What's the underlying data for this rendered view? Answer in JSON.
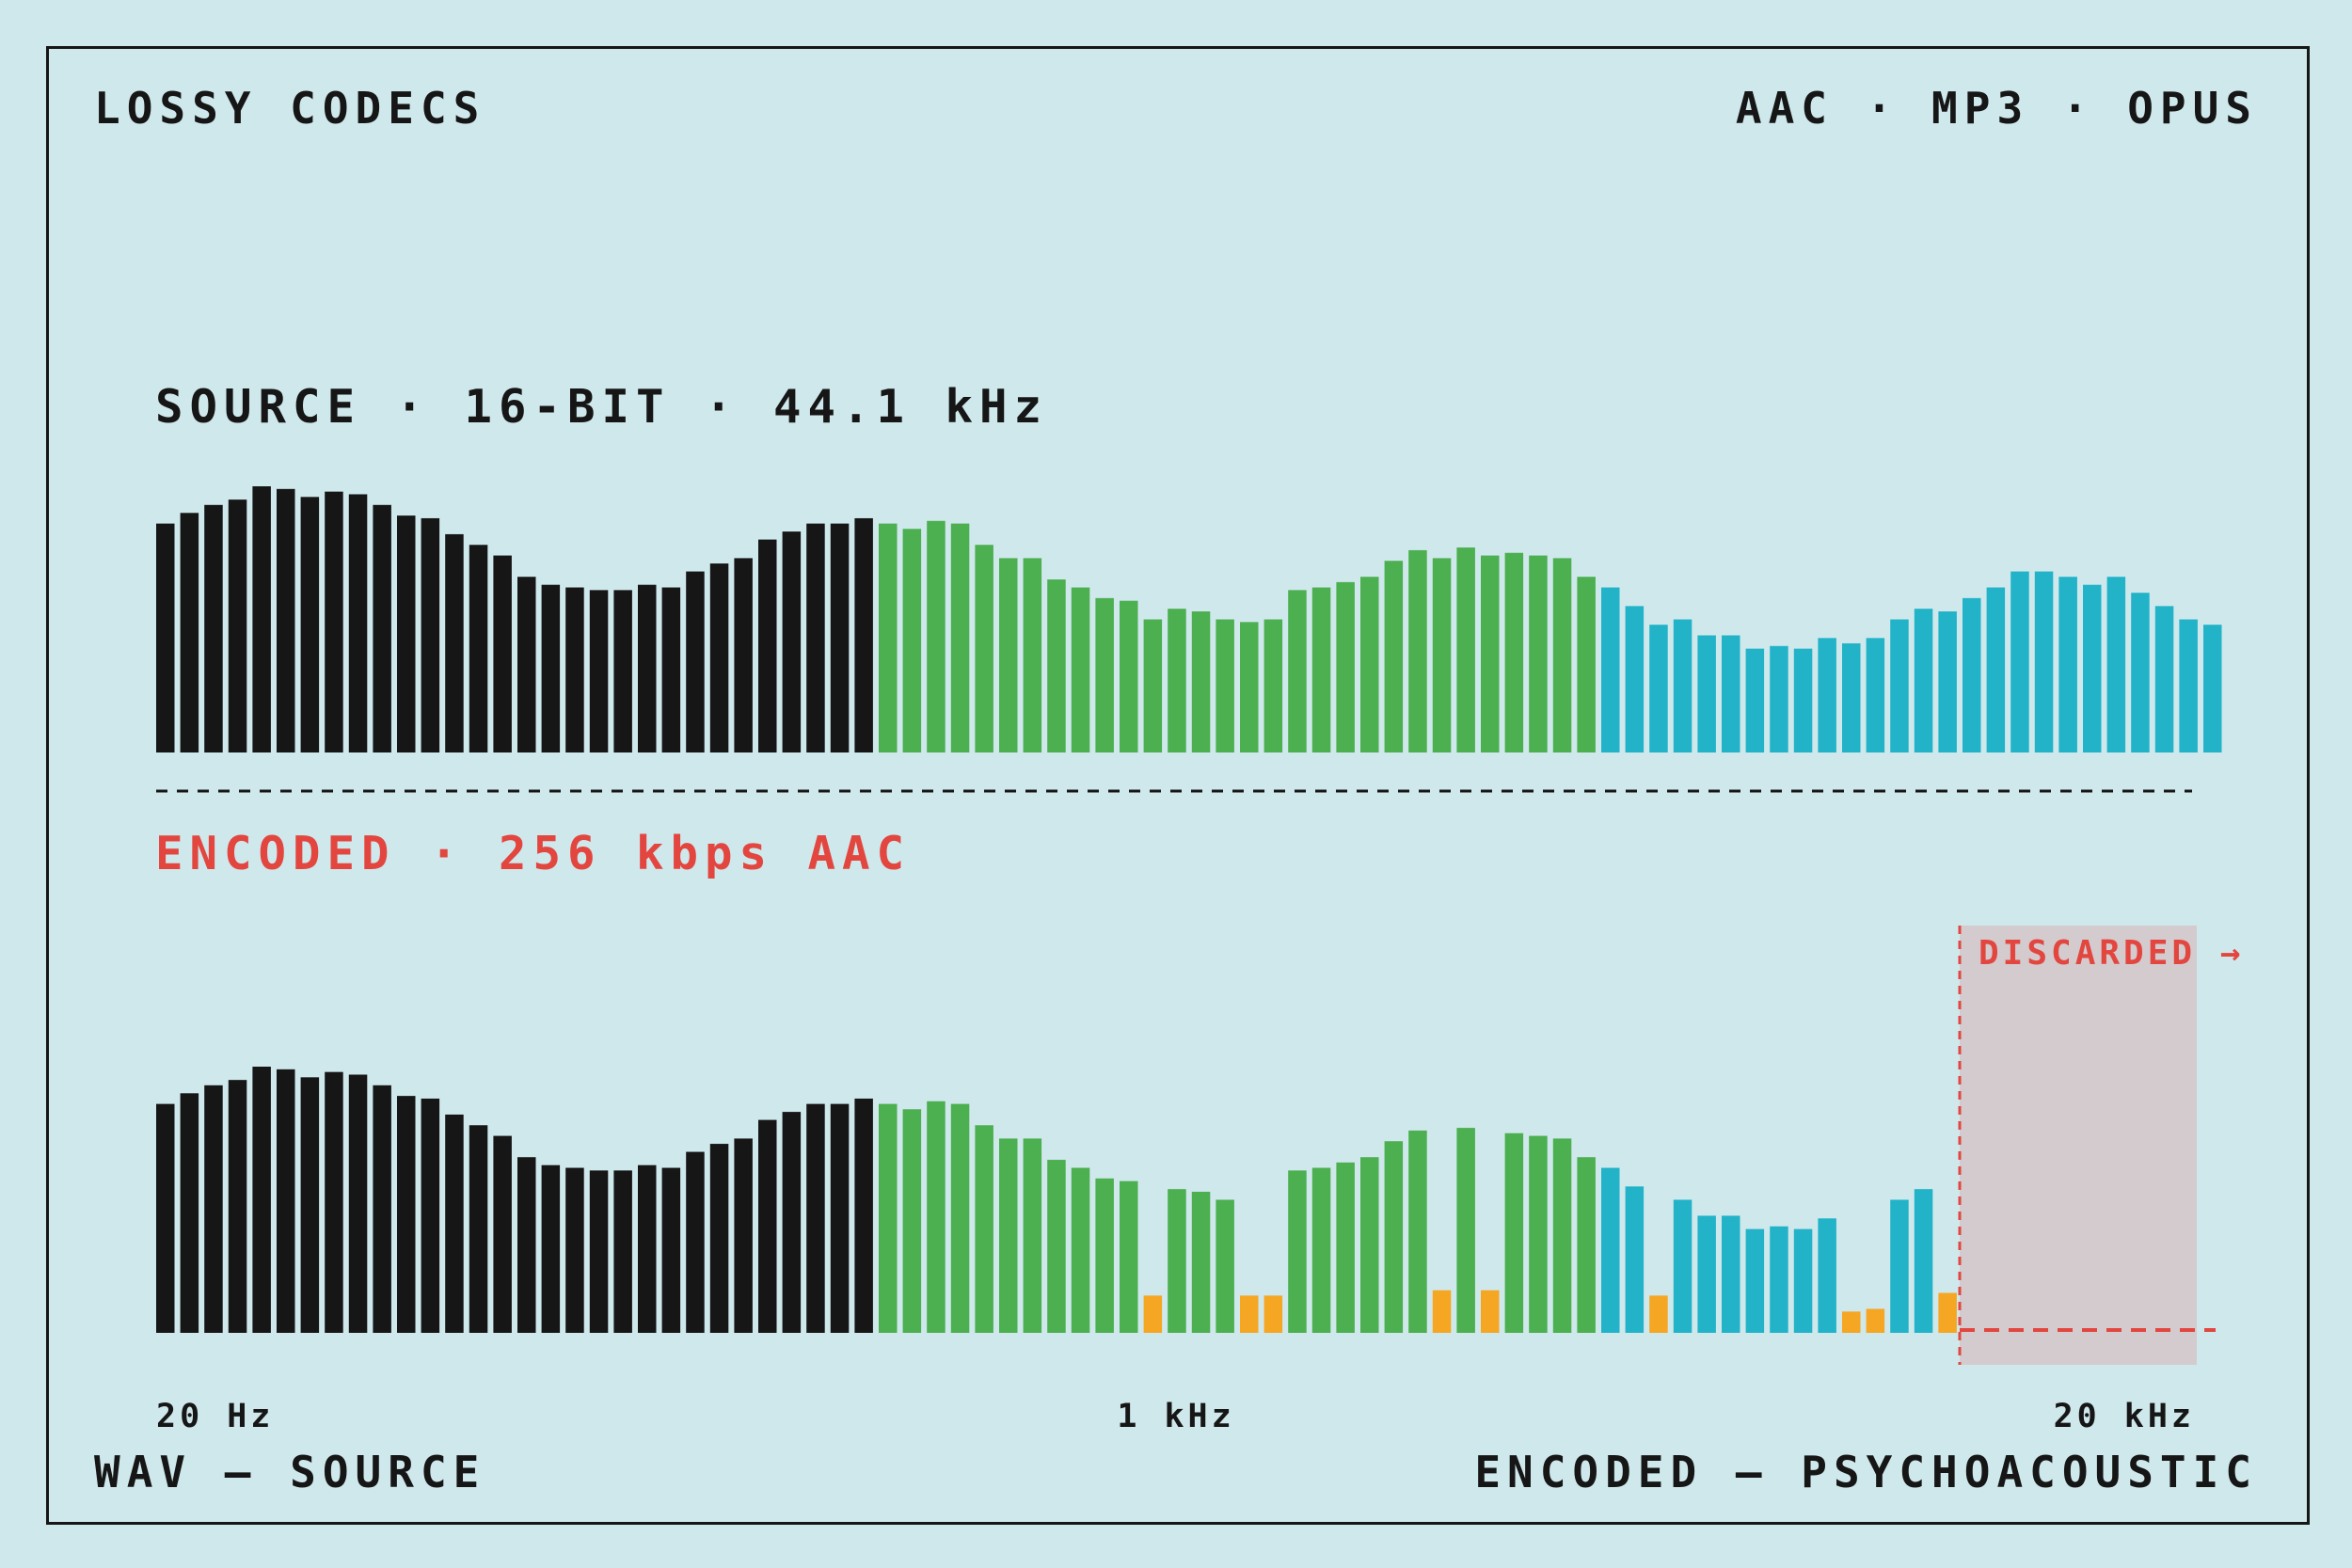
{
  "header": {
    "title": "LOSSY CODECS",
    "codecs": "AAC · MP3 · OPUS"
  },
  "footer": {
    "left": "WAV — SOURCE",
    "right": "ENCODED — PSYCHOACOUSTIC"
  },
  "colors": {
    "background": "#cfe8ec",
    "ink": "#161616",
    "band_low": "#161616",
    "band_mid": "#4caf50",
    "band_high": "#22b3c8",
    "masked": "#f5a623",
    "discard": "#e2463f",
    "discard_zone": "#d4cbcf"
  },
  "chart_data": [
    {
      "type": "bar",
      "title": "SOURCE · 16-BIT · 44.1 kHz",
      "ylim": [
        0,
        100
      ],
      "bands": {
        "low": [
          0,
          29
        ],
        "mid": [
          30,
          59
        ],
        "high": [
          60,
          85
        ]
      },
      "values": [
        86,
        90,
        93,
        95,
        100,
        99,
        96,
        98,
        97,
        93,
        89,
        88,
        82,
        78,
        74,
        66,
        63,
        62,
        61,
        61,
        63,
        62,
        68,
        71,
        73,
        80,
        83,
        86,
        86,
        88,
        86,
        84,
        87,
        86,
        78,
        73,
        73,
        65,
        62,
        58,
        57,
        50,
        54,
        53,
        50,
        49,
        50,
        61,
        62,
        64,
        66,
        72,
        76,
        73,
        77,
        74,
        75,
        74,
        73,
        66,
        62,
        55,
        48,
        50,
        44,
        44,
        39,
        40,
        39,
        43,
        41,
        43,
        50,
        54,
        53,
        58,
        62,
        68,
        68,
        66,
        63,
        66,
        60,
        55,
        50,
        48
      ]
    },
    {
      "type": "bar",
      "title": "ENCODED · 256 kbps AAC",
      "ylim": [
        0,
        100
      ],
      "bands": {
        "low": [
          0,
          29
        ],
        "mid": [
          30,
          59
        ],
        "high": [
          60,
          85
        ]
      },
      "values": [
        86,
        90,
        93,
        95,
        100,
        99,
        96,
        98,
        97,
        93,
        89,
        88,
        82,
        78,
        74,
        66,
        63,
        62,
        61,
        61,
        63,
        62,
        68,
        71,
        73,
        80,
        83,
        86,
        86,
        88,
        86,
        84,
        87,
        86,
        78,
        73,
        73,
        65,
        62,
        58,
        57,
        14,
        54,
        53,
        50,
        14,
        14,
        61,
        62,
        64,
        66,
        72,
        76,
        16,
        77,
        16,
        75,
        74,
        73,
        66,
        62,
        55,
        14,
        50,
        44,
        44,
        39,
        40,
        39,
        43,
        8,
        9,
        50,
        54,
        15,
        0,
        0,
        0,
        0,
        0,
        0,
        0,
        0,
        0,
        0,
        0
      ],
      "masked_indices": [
        41,
        45,
        46,
        53,
        55,
        62,
        70,
        71,
        74
      ],
      "discard_from": 75,
      "discard_label": "DISCARDED →",
      "xticks": [
        "20 Hz",
        "1 kHz",
        "20 kHz"
      ]
    }
  ]
}
